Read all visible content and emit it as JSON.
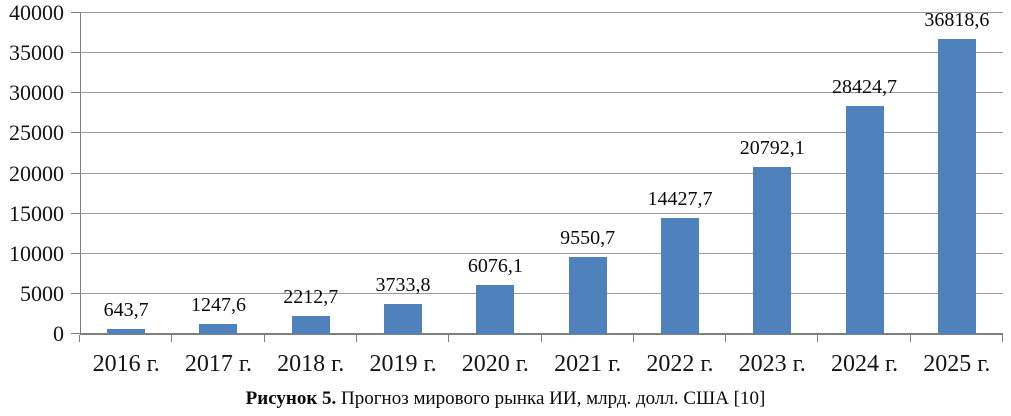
{
  "chart_data": {
    "type": "bar",
    "title": "",
    "categories": [
      "2016 г.",
      "2017 г.",
      "2018 г.",
      "2019 г.",
      "2020 г.",
      "2021 г.",
      "2022 г.",
      "2023 г.",
      "2024 г.",
      "2025 г."
    ],
    "values": [
      643.7,
      1247.6,
      2212.7,
      3733.8,
      6076.1,
      9550.7,
      14427.7,
      20792.1,
      28424.7,
      36818.6
    ],
    "value_labels": [
      "643,7",
      "1247,6",
      "2212,7",
      "3733,8",
      "6076,1",
      "9550,7",
      "14427,7",
      "20792,1",
      "28424,7",
      "36818,6"
    ],
    "xlabel": "",
    "ylabel": "",
    "ylim": [
      0,
      40000
    ],
    "ytick_step": 5000,
    "ytick_labels": [
      "0",
      "5000",
      "10000",
      "15000",
      "20000",
      "25000",
      "30000",
      "35000",
      "40000"
    ],
    "grid": true,
    "legend": false
  },
  "caption": {
    "label": "Рисунок 5.",
    "text": " Прогноз мирового рынка ИИ, млрд. долл. США [10]"
  },
  "colors": {
    "bar": "#4F81BD",
    "gridline": "#9a9a9a",
    "axis": "#7f7f7f",
    "text": "#0a0a0a"
  }
}
